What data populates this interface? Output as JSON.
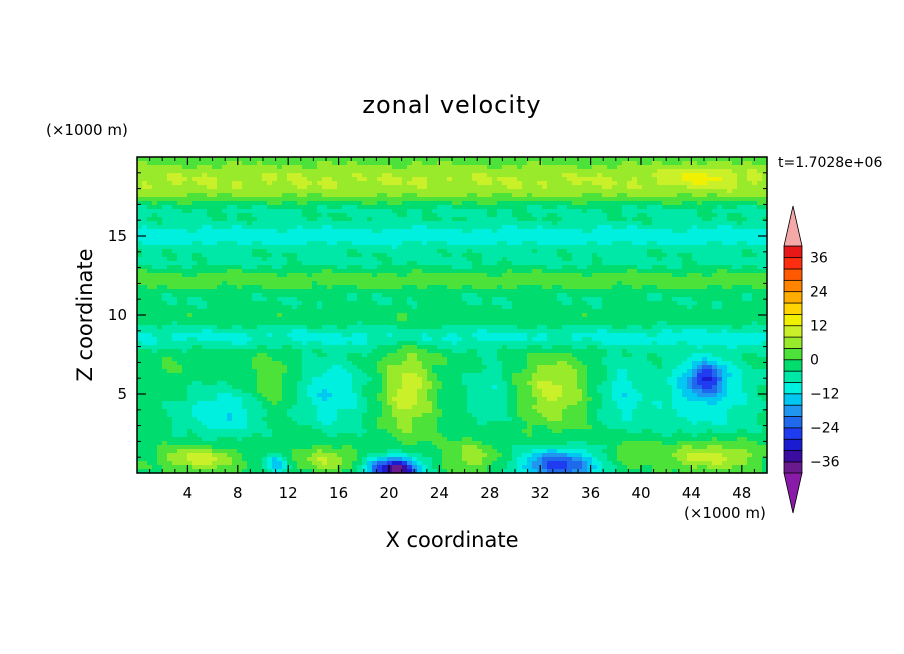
{
  "chart_data": {
    "type": "heatmap",
    "title": "zonal velocity",
    "xlabel": "X coordinate",
    "ylabel": "Z coordinate",
    "x_unit_label": "(×1000 m)",
    "y_unit_label": "(×1000 m)",
    "time_label": "t=1.7028e+06",
    "xlim": [
      0,
      50
    ],
    "ylim": [
      0,
      20
    ],
    "x_ticks": [
      4,
      8,
      12,
      16,
      20,
      24,
      28,
      32,
      36,
      40,
      44,
      48
    ],
    "y_ticks": [
      5,
      10,
      15
    ],
    "colorbar": {
      "levels": [
        -40,
        -36,
        -32,
        -28,
        -24,
        -20,
        -16,
        -12,
        -8,
        -4,
        0,
        4,
        8,
        12,
        16,
        20,
        24,
        28,
        32,
        36,
        40
      ],
      "colors": [
        "#6a1a8c",
        "#3a0ca0",
        "#1b1bd2",
        "#1f3cf0",
        "#1f6aec",
        "#1f96f0",
        "#00c8f0",
        "#00f0e0",
        "#00e8a8",
        "#00dc6e",
        "#4ce23a",
        "#98ea2a",
        "#caf02a",
        "#f0f000",
        "#ffd400",
        "#ffae00",
        "#ff8400",
        "#ff5a00",
        "#ff2e10",
        "#e81818"
      ],
      "under_color": "#8a1aa8",
      "over_color": "#f4a8a8",
      "tick_labels": [
        "36",
        "24",
        "12",
        "0",
        "−12",
        "−24",
        "−36"
      ]
    },
    "field": {
      "background_value": -2,
      "bands": [
        {
          "z": 18.5,
          "width": 1.4,
          "amp": 10
        },
        {
          "z": 16.7,
          "width": 0.5,
          "amp": -4
        },
        {
          "z": 15.0,
          "width": 0.9,
          "amp": -8
        },
        {
          "z": 13.3,
          "width": 0.5,
          "amp": -3
        },
        {
          "z": 12.2,
          "width": 0.7,
          "amp": 4
        },
        {
          "z": 11.0,
          "width": 0.7,
          "amp": -2
        },
        {
          "z": 9.8,
          "width": 0.7,
          "amp": 1
        },
        {
          "z": 8.6,
          "width": 0.7,
          "amp": -7
        }
      ],
      "blobs": [
        {
          "x": 45,
          "z": 18.8,
          "sx": 2.5,
          "sz": 0.7,
          "amp": 6
        },
        {
          "x": 45.2,
          "z": 6.0,
          "sx": 1.5,
          "sz": 1.0,
          "amp": -18
        },
        {
          "x": 45.0,
          "z": 5.0,
          "sx": 4.0,
          "sz": 2.6,
          "amp": -10
        },
        {
          "x": 7.0,
          "z": 3.8,
          "sx": 3.5,
          "sz": 1.5,
          "amp": -10
        },
        {
          "x": 10.5,
          "z": 5.5,
          "sx": 1.6,
          "sz": 2.2,
          "amp": 6
        },
        {
          "x": 2.5,
          "z": 6.5,
          "sx": 1.5,
          "sz": 1.5,
          "amp": 2
        },
        {
          "x": 15.5,
          "z": 5.0,
          "sx": 2.5,
          "sz": 2.2,
          "amp": -10
        },
        {
          "x": 21.5,
          "z": 5.2,
          "sx": 2.0,
          "sz": 2.8,
          "amp": 12
        },
        {
          "x": 28.0,
          "z": 5.0,
          "sx": 1.8,
          "sz": 2.0,
          "amp": -6
        },
        {
          "x": 33.0,
          "z": 5.2,
          "sx": 2.6,
          "sz": 2.2,
          "amp": 11
        },
        {
          "x": 38.5,
          "z": 5.0,
          "sx": 1.8,
          "sz": 2.2,
          "amp": -8
        },
        {
          "x": 20.5,
          "z": 0.2,
          "sx": 2.0,
          "sz": 0.8,
          "amp": -36
        },
        {
          "x": 33.5,
          "z": 0.5,
          "sx": 3.0,
          "sz": 1.0,
          "amp": -24
        },
        {
          "x": 11.0,
          "z": 0.6,
          "sx": 1.0,
          "sz": 0.6,
          "amp": -12
        },
        {
          "x": 5.0,
          "z": 0.9,
          "sx": 3.0,
          "sz": 0.8,
          "amp": 12
        },
        {
          "x": 15.0,
          "z": 0.9,
          "sx": 2.2,
          "sz": 0.8,
          "amp": 10
        },
        {
          "x": 26.5,
          "z": 1.0,
          "sx": 2.0,
          "sz": 1.0,
          "amp": 9
        },
        {
          "x": 39.0,
          "z": 1.3,
          "sx": 1.5,
          "sz": 0.8,
          "amp": 6
        },
        {
          "x": 45.5,
          "z": 1.1,
          "sx": 4.0,
          "sz": 1.0,
          "amp": 12
        }
      ]
    }
  }
}
